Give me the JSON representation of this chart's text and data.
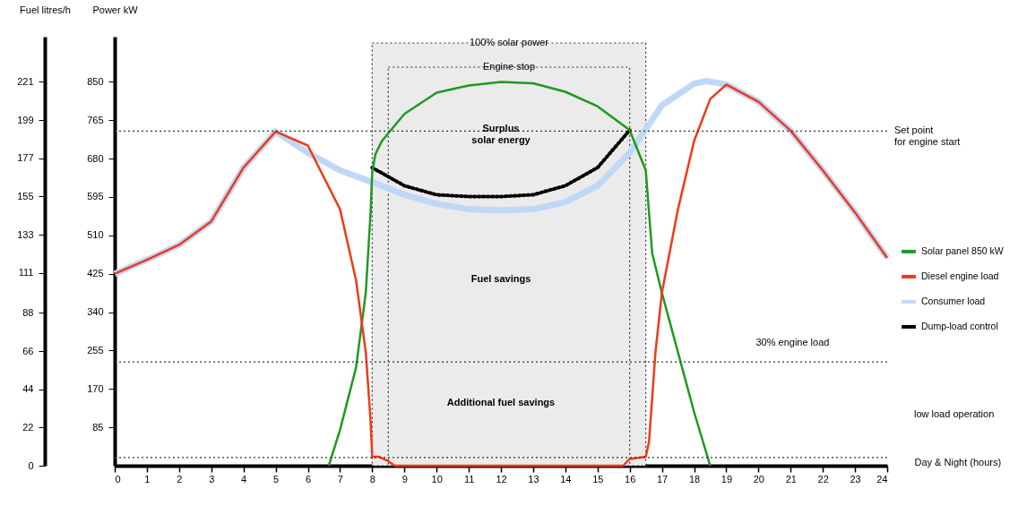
{
  "chart_data": {
    "type": "line",
    "xlabel": "Day & Night (hours)",
    "ylabel": "Power kW",
    "y2label": "Fuel litres/h",
    "xlim": [
      0,
      24
    ],
    "xticks": [
      0,
      1,
      2,
      3,
      4,
      5,
      6,
      7,
      8,
      9,
      10,
      11,
      12,
      13,
      14,
      15,
      16,
      17,
      18,
      19,
      20,
      21,
      22,
      23,
      24
    ],
    "ylim": [
      0,
      950
    ],
    "yticks": [
      85,
      170,
      255,
      340,
      425,
      510,
      595,
      680,
      765,
      850
    ],
    "y2lim": [
      0,
      247
    ],
    "y2ticks": [
      0,
      22,
      44,
      66,
      88,
      111,
      133,
      155,
      177,
      199,
      221
    ],
    "grid": false,
    "legend": "right",
    "marker": "none",
    "series": [
      {
        "name": "Solar panel 850 kW",
        "color": "#1e9a1e",
        "x": [
          6.65,
          7,
          7.5,
          7.8,
          7.95,
          8,
          8.1,
          8.3,
          9,
          10,
          11,
          12,
          13,
          14,
          15,
          16,
          16.5,
          16.6,
          16.7,
          17,
          17.5,
          18,
          18.5
        ],
        "values": [
          0,
          79,
          218,
          383,
          560,
          650,
          690,
          719,
          779,
          826,
          842,
          850,
          847,
          828,
          796,
          743,
          654,
          560,
          470,
          383,
          251,
          119,
          0
        ]
      },
      {
        "name": "Diesel engine load",
        "color": "#f03a17",
        "x": [
          0,
          1,
          2,
          3,
          4,
          5,
          6,
          7,
          7.5,
          7.8,
          7.95,
          8,
          8.2,
          8.5,
          8.7,
          15.8,
          16,
          16.5,
          16.6,
          16.8,
          17,
          17.5,
          18,
          18.5,
          19,
          20,
          21,
          22,
          23,
          24
        ],
        "values": [
          425,
          456,
          489,
          541,
          660,
          740,
          709,
          568,
          410,
          251,
          100,
          20,
          20,
          10,
          0,
          0,
          15,
          20,
          53,
          251,
          383,
          568,
          719,
          812,
          844,
          806,
          742,
          654,
          561,
          460
        ]
      },
      {
        "name": "Consumer load",
        "color": "#c0d8f7",
        "x": [
          0,
          1,
          2,
          3,
          4,
          5,
          6,
          7,
          8,
          9,
          10,
          11,
          12,
          13,
          14,
          15,
          16,
          17,
          18,
          18.4,
          19,
          20,
          21,
          22,
          23,
          24
        ],
        "values": [
          425,
          456,
          489,
          541,
          660,
          740,
          693,
          654,
          628,
          600,
          580,
          568,
          565,
          568,
          584,
          620,
          693,
          798,
          846,
          852,
          844,
          806,
          742,
          654,
          561,
          460
        ]
      },
      {
        "name": "Dump-load control",
        "color": "#000000",
        "line_style": "dotted",
        "x": [
          8,
          9,
          10,
          11,
          12,
          13,
          14,
          15,
          16
        ],
        "values": [
          660,
          620,
          600,
          596,
          596,
          600,
          620,
          660,
          743
        ]
      }
    ],
    "ref_lines": [
      {
        "axis": "y",
        "value": 741,
        "label": "Set point\nfor engine start",
        "line_style": "dotted"
      },
      {
        "axis": "y",
        "value": 230,
        "label": "30% engine load",
        "line_style": "dotted"
      },
      {
        "axis": "y",
        "value": 18,
        "line_style": "dotted"
      }
    ],
    "bands": [
      {
        "axis": "x",
        "from": 8,
        "to": 16.5,
        "label": "100% solar power",
        "color": "#ebebeb"
      },
      {
        "axis": "x",
        "from": 8.5,
        "to": 16,
        "label": "Engine stop",
        "color": "#ebebeb"
      }
    ],
    "annotations": [
      {
        "text": "Surplus\nsolar energy",
        "x": 12,
        "y": 745
      },
      "Fuel savings",
      "Additional fuel savings",
      "low load operation"
    ]
  }
}
